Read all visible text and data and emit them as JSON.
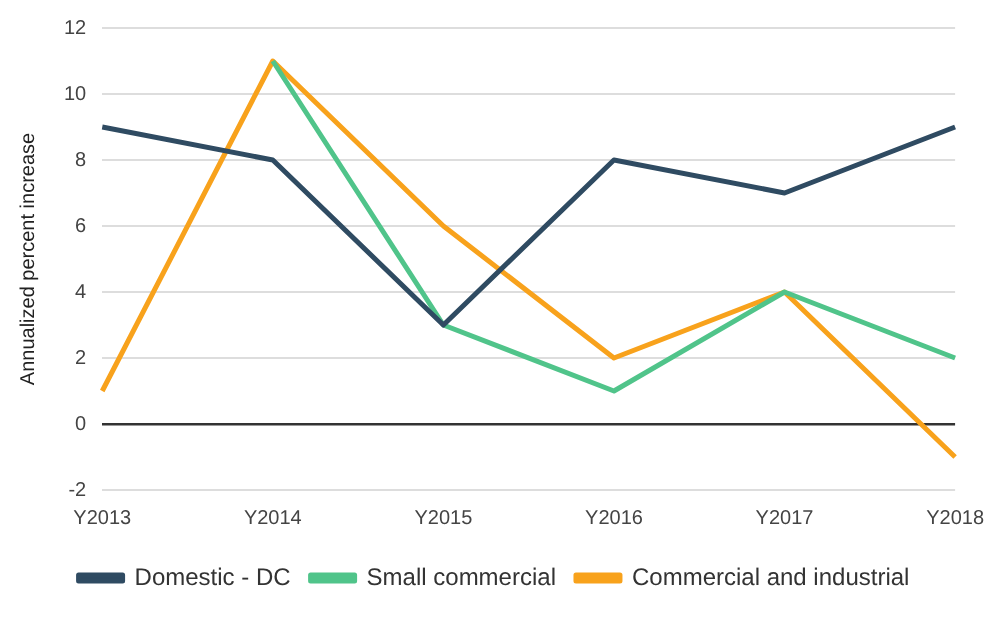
{
  "chart_data": {
    "type": "line",
    "ylabel": "Annualized percent increase",
    "categories": [
      "Y2013",
      "Y2014",
      "Y2015",
      "Y2016",
      "Y2017",
      "Y2018"
    ],
    "series": [
      {
        "name": "Domestic - DC",
        "color": "#2f4b62",
        "values": [
          9,
          8,
          3,
          8,
          7,
          9
        ]
      },
      {
        "name": "Small commercial",
        "color": "#50c48a",
        "values": [
          null,
          11,
          3,
          1,
          4,
          2
        ]
      },
      {
        "name": "Commercial and industrial",
        "color": "#f8a21c",
        "values": [
          1,
          11,
          6,
          2,
          4,
          -1
        ]
      }
    ],
    "ylim": [
      -2,
      12
    ],
    "yticks": [
      -2,
      0,
      2,
      4,
      6,
      8,
      10,
      12
    ],
    "grid": "y",
    "legend": "bottom",
    "marker": "none",
    "line_style": "solid"
  }
}
